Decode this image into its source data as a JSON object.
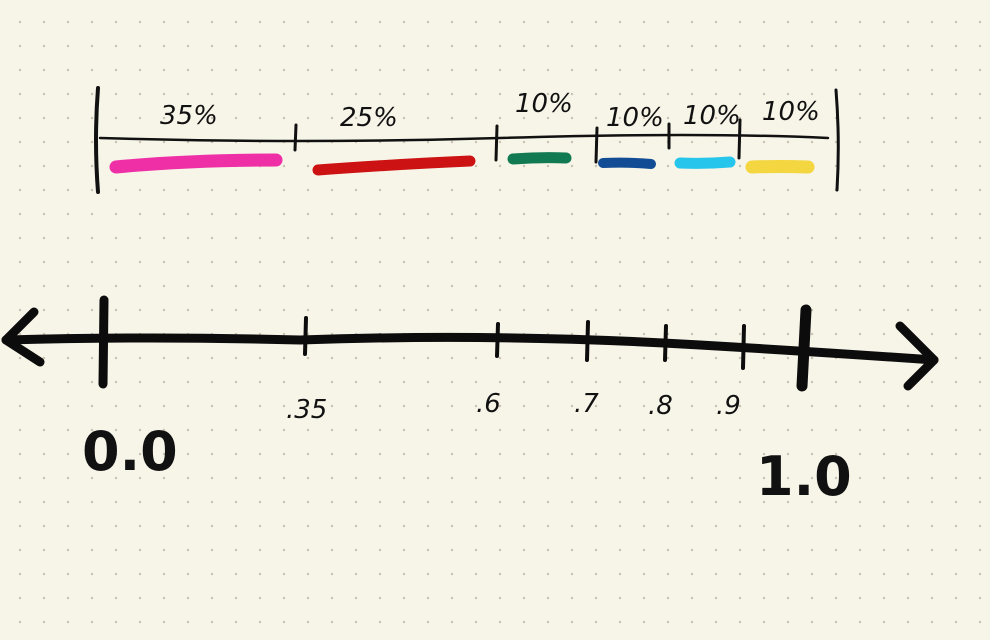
{
  "segments": [
    {
      "label": "35%",
      "color": "#ee2fa6"
    },
    {
      "label": "25%",
      "color": "#cc1212"
    },
    {
      "label": "10%",
      "color": "#127a52"
    },
    {
      "label": "10%",
      "color": "#124c94"
    },
    {
      "label": "10%",
      "color": "#26c6ec"
    },
    {
      "label": "10%",
      "color": "#f4d640"
    }
  ],
  "number_line": {
    "start_label": "0.0",
    "end_label": "1.0",
    "ticks": [
      ".35",
      ".6",
      ".7",
      ".8",
      ".9"
    ]
  }
}
